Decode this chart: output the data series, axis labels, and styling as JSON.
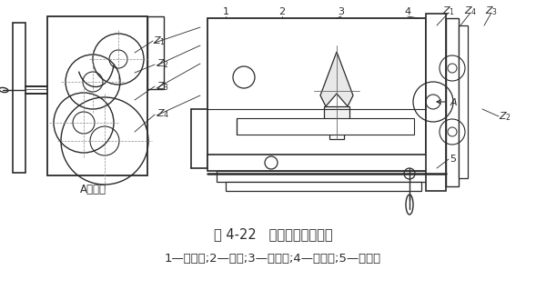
{
  "title": "图 4-22   铣齿条移距挂轮架",
  "caption": "1—定位把;2—支架;3—伞齿轮;4—挂轮架;5—手轮。",
  "bg_color": "#ffffff",
  "line_color": "#2a2a2a",
  "title_fontsize": 10.5,
  "caption_fontsize": 9.5,
  "left_label": "A向旋转"
}
